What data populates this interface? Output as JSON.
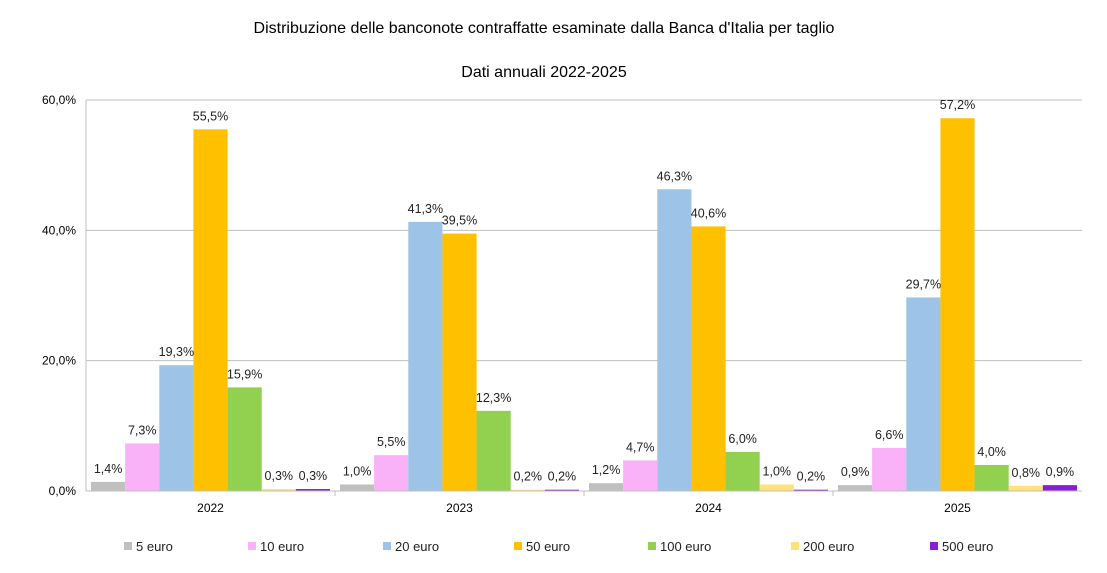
{
  "chart_data": {
    "type": "bar",
    "title": "Distribuzione delle banconote contraffatte esaminate dalla Banca d'Italia per taglio",
    "subtitle": "Dati annuali 2022-2025",
    "categories": [
      "2022",
      "2023",
      "2024",
      "2025"
    ],
    "ylim": [
      0,
      60
    ],
    "yticks": [
      "0,0%",
      "20,0%",
      "40,0%",
      "60,0%"
    ],
    "ytick_values": [
      0,
      20,
      40,
      60
    ],
    "grid": true,
    "legend_position": "bottom",
    "series": [
      {
        "name": "5 euro",
        "color": "#C0C0C0",
        "values": [
          1.4,
          1.0,
          1.2,
          0.9
        ],
        "labels": [
          "1,4%",
          "1,0%",
          "1,2%",
          "0,9%"
        ]
      },
      {
        "name": "10 euro",
        "color": "#F9B1F8",
        "values": [
          7.3,
          5.5,
          4.7,
          6.6
        ],
        "labels": [
          "7,3%",
          "5,5%",
          "4,7%",
          "6,6%"
        ]
      },
      {
        "name": "20 euro",
        "color": "#9DC3E6",
        "values": [
          19.3,
          41.3,
          46.3,
          29.7
        ],
        "labels": [
          "19,3%",
          "41,3%",
          "46,3%",
          "29,7%"
        ]
      },
      {
        "name": "50 euro",
        "color": "#FFC000",
        "values": [
          55.5,
          39.5,
          40.6,
          57.2
        ],
        "labels": [
          "55,5%",
          "39,5%",
          "40,6%",
          "57,2%"
        ]
      },
      {
        "name": "100 euro",
        "color": "#92D050",
        "values": [
          15.9,
          12.3,
          6.0,
          4.0
        ],
        "labels": [
          "15,9%",
          "12,3%",
          "6,0%",
          "4,0%"
        ]
      },
      {
        "name": "200 euro",
        "color": "#FFE27A",
        "values": [
          0.3,
          0.2,
          1.0,
          0.8
        ],
        "labels": [
          "0,3%",
          "0,2%",
          "1,0%",
          "0,8%"
        ]
      },
      {
        "name": "500 euro",
        "color": "#8A1BD6",
        "values": [
          0.3,
          0.2,
          0.2,
          0.9
        ],
        "labels": [
          "0,3%",
          "0,2%",
          "0,2%",
          "0,9%"
        ]
      }
    ]
  }
}
